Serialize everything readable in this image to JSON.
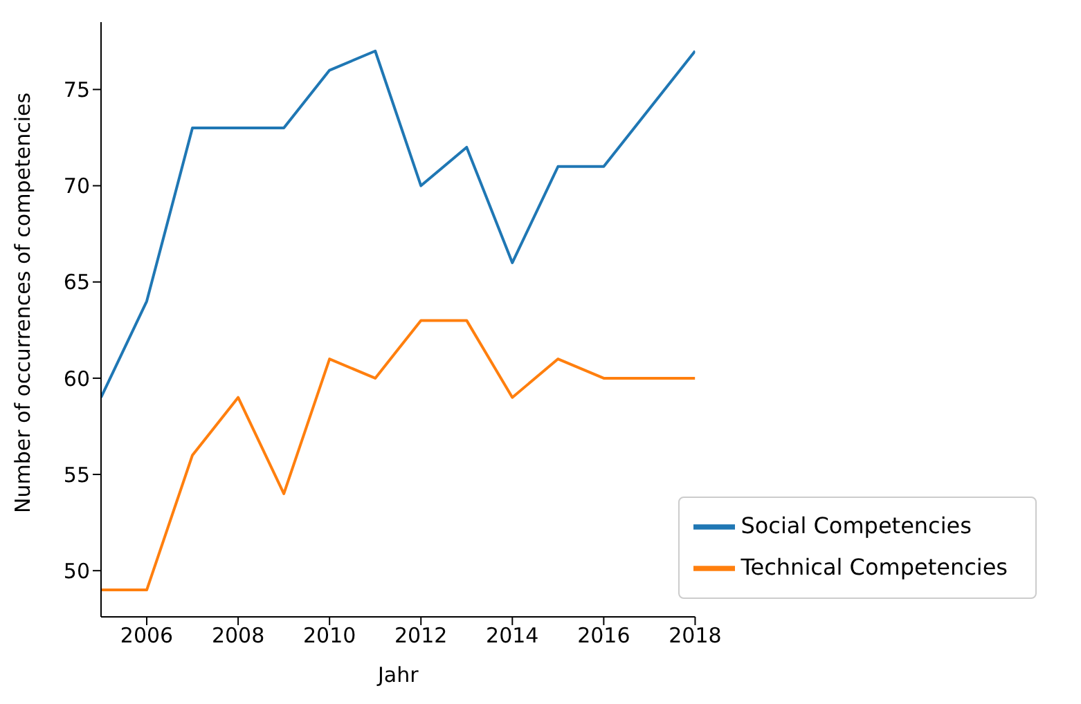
{
  "chart_data": {
    "type": "line",
    "xlabel": "Jahr",
    "ylabel": "Number of occurrences of competencies",
    "x": [
      2005,
      2006,
      2007,
      2008,
      2009,
      2010,
      2011,
      2012,
      2013,
      2014,
      2015,
      2016,
      2017,
      2018
    ],
    "series": [
      {
        "name": "Social Competencies",
        "color": "#1f77b4",
        "values": [
          59,
          64,
          73,
          73,
          73,
          76,
          77,
          70,
          72,
          66,
          71,
          71,
          74,
          77
        ]
      },
      {
        "name": "Technical Competencies",
        "color": "#ff7f0e",
        "values": [
          49,
          49,
          56,
          59,
          54,
          61,
          60,
          63,
          63,
          59,
          61,
          60,
          60,
          60
        ]
      }
    ],
    "xlim": [
      2005,
      2018
    ],
    "xticks": [
      2006,
      2008,
      2010,
      2012,
      2014,
      2016,
      2018
    ],
    "ylim": [
      47.6,
      78.5
    ],
    "yticks": [
      50,
      55,
      60,
      65,
      70,
      75
    ],
    "grid": false,
    "legend": "bottom right",
    "marker": "none",
    "line_style": "solid"
  }
}
